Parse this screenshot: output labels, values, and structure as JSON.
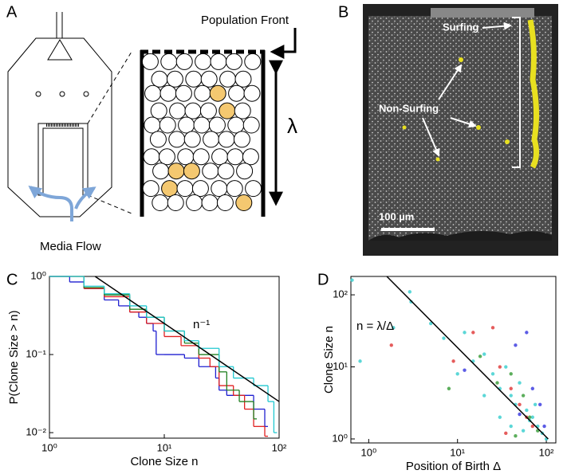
{
  "panels": {
    "a": {
      "label": "A",
      "front": "Population Front",
      "lambda": "λ",
      "flow": "Media Flow"
    },
    "b": {
      "label": "B",
      "surfing": "Surfing",
      "non_surfing": "Non-Surfing",
      "scale": "100 µm"
    }
  },
  "chart_data": [
    {
      "type": "step",
      "panel_label": "C",
      "x_label": "Clone Size n",
      "y_label": "P(Clone Size > n)",
      "xscale": "log",
      "yscale": "log",
      "xlim": [
        1,
        100
      ],
      "ylim": [
        0.0085,
        1
      ],
      "xticks": [
        {
          "value": 1,
          "label": "10⁰"
        },
        {
          "value": 10,
          "label": "10¹"
        },
        {
          "value": 100,
          "label": "10²"
        }
      ],
      "yticks": [
        {
          "value": 0.01,
          "label": "10⁻²"
        },
        {
          "value": 0.1,
          "label": "10⁻¹"
        },
        {
          "value": 1,
          "label": "10⁰"
        }
      ],
      "series": [
        {
          "color": "#1f1fd0",
          "x": [
            1,
            1.5,
            2,
            3,
            4,
            5,
            6,
            7,
            8,
            8.5,
            10,
            15,
            20,
            28,
            30,
            35,
            45,
            60,
            75
          ],
          "values": [
            1,
            0.85,
            0.7,
            0.5,
            0.42,
            0.35,
            0.3,
            0.25,
            0.2,
            0.1,
            0.1,
            0.09,
            0.07,
            0.05,
            0.035,
            0.03,
            0.03,
            0.02,
            0.012
          ]
        },
        {
          "color": "#e02020",
          "x": [
            1,
            2,
            3,
            5,
            7,
            10,
            14,
            20,
            25,
            30,
            40,
            50,
            60,
            75
          ],
          "values": [
            1,
            0.7,
            0.55,
            0.35,
            0.25,
            0.17,
            0.13,
            0.09,
            0.07,
            0.04,
            0.03,
            0.02,
            0.012,
            0.009
          ]
        },
        {
          "color": "#208020",
          "x": [
            1,
            2,
            3,
            5,
            7,
            10,
            15,
            20,
            30,
            35,
            45,
            60
          ],
          "values": [
            1,
            0.72,
            0.58,
            0.38,
            0.3,
            0.2,
            0.14,
            0.1,
            0.06,
            0.035,
            0.025,
            0.015
          ]
        },
        {
          "color": "#20c8d0",
          "x": [
            1,
            2,
            3,
            5,
            7,
            10,
            15,
            20,
            30,
            40,
            60,
            80,
            90
          ],
          "values": [
            1,
            0.75,
            0.6,
            0.42,
            0.3,
            0.2,
            0.15,
            0.12,
            0.07,
            0.05,
            0.04,
            0.025,
            0.01
          ]
        }
      ],
      "reference_line": {
        "label": "n⁻¹",
        "x": [
          2.5,
          100
        ],
        "values": [
          1,
          0.025
        ]
      }
    },
    {
      "type": "scatter",
      "panel_label": "D",
      "x_label": "Position of Birth Δ",
      "y_label": "Clone Size n",
      "xscale": "log",
      "yscale": "log",
      "xlim": [
        0.63,
        128
      ],
      "ylim": [
        0.88,
        180
      ],
      "xticks": [
        {
          "value": 1,
          "label": "10⁰"
        },
        {
          "value": 10,
          "label": "10¹"
        },
        {
          "value": 100,
          "label": "10²"
        }
      ],
      "yticks": [
        {
          "value": 1,
          "label": "10⁰"
        },
        {
          "value": 10,
          "label": "10¹"
        },
        {
          "value": 100,
          "label": "10²"
        }
      ],
      "series": [
        {
          "color": "#40d0d0",
          "x": [
            0.65,
            0.8,
            2.9,
            3,
            1.9,
            5,
            7,
            10,
            12,
            15,
            20,
            25,
            30,
            35,
            40,
            45,
            50,
            60,
            70,
            80,
            90,
            100,
            55,
            65,
            30,
            40,
            20,
            75
          ],
          "values": [
            160,
            12,
            110,
            80,
            35,
            40,
            25,
            8,
            30,
            12,
            15,
            8,
            5,
            10,
            4,
            3,
            6,
            2.5,
            2,
            1.5,
            1.2,
            1,
            1.3,
            1.8,
            2,
            1.5,
            4,
            3
          ]
        },
        {
          "color": "#e04040",
          "x": [
            1.8,
            9,
            15,
            25,
            30,
            40,
            50,
            60,
            70,
            35
          ],
          "values": [
            20,
            12,
            30,
            35,
            10,
            5,
            3,
            2,
            1.5,
            1.2
          ]
        },
        {
          "color": "#40a040",
          "x": [
            8,
            18,
            28,
            40,
            55,
            65,
            80,
            45
          ],
          "values": [
            5,
            14,
            6,
            8,
            4,
            2,
            1.3,
            1.1
          ]
        },
        {
          "color": "#4040e0",
          "x": [
            12,
            45,
            60,
            70,
            85,
            95,
            50
          ],
          "values": [
            9,
            20,
            30,
            5,
            3,
            1.5,
            2.2
          ]
        }
      ],
      "reference_line": {
        "label": "n = λ/Δ",
        "x": [
          1.6,
          105
        ],
        "values": [
          180,
          1
        ]
      }
    }
  ]
}
